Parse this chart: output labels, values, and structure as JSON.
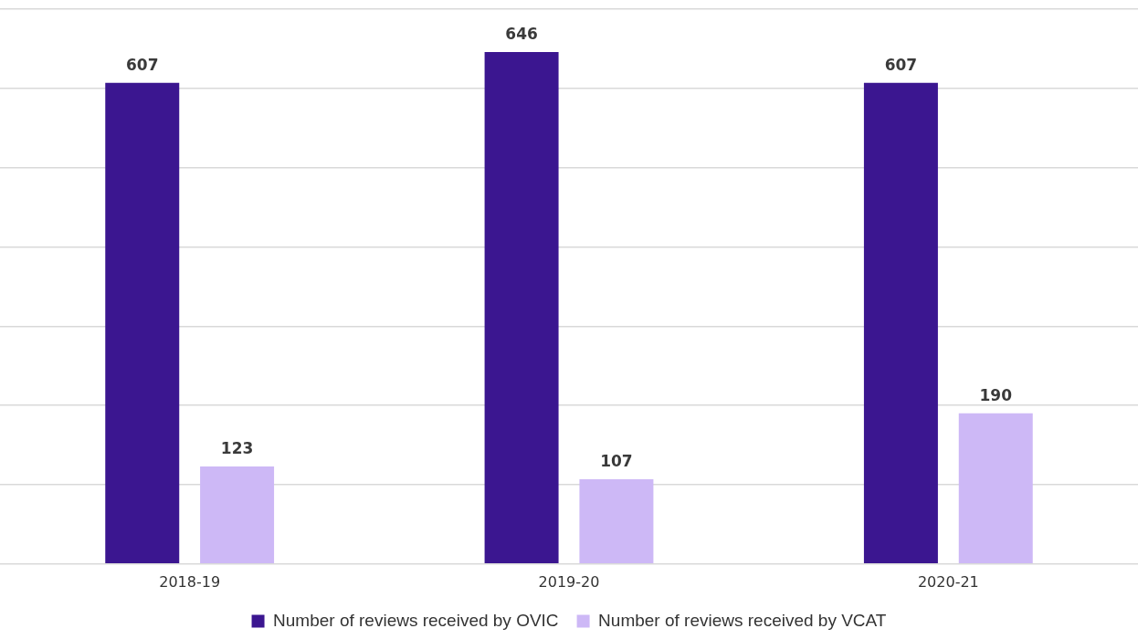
{
  "chart_data": {
    "type": "bar",
    "categories": [
      "2018-19",
      "2019-20",
      "2020-21"
    ],
    "series": [
      {
        "name": "Number of reviews received by OVIC",
        "color": "#3b1690",
        "values": [
          607,
          646,
          607
        ]
      },
      {
        "name": "Number of reviews received by VCAT",
        "color": "#cdb8f6",
        "values": [
          123,
          107,
          190
        ]
      }
    ],
    "ylim": [
      0,
      700
    ],
    "yticks": [
      {
        "value": 0,
        "label": null
      },
      {
        "value": 100,
        "label": null
      },
      {
        "value": 200,
        "label": null
      },
      {
        "value": 300,
        "label": null
      },
      {
        "value": 400,
        "label": null
      },
      {
        "value": 500,
        "label": null
      },
      {
        "value": 600,
        "label": null
      },
      {
        "value": 700,
        "label": null
      }
    ],
    "tick_labels": "x",
    "grid": "y",
    "legend": "bottom",
    "data_labels": true
  }
}
